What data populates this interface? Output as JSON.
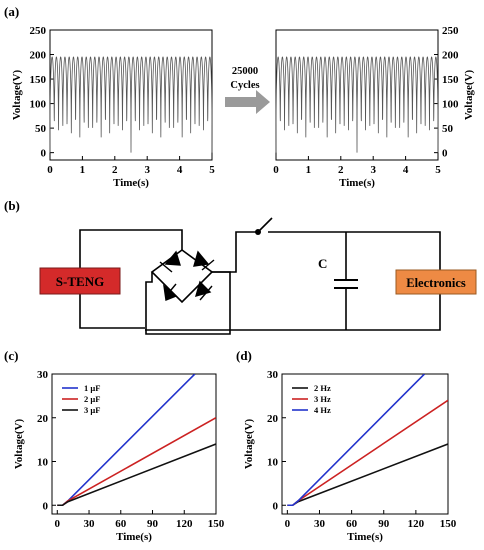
{
  "panels": {
    "a": "(a)",
    "b": "(b)",
    "c": "(c)",
    "d": "(d)"
  },
  "panel_b": {
    "source_label": "S-TENG",
    "capacitor_label": "C",
    "load_label": "Electronics",
    "source_color": "#e02020",
    "load_color": "#f08a3c"
  },
  "arrow_text": [
    "25000",
    "Cycles"
  ],
  "chart_data": [
    {
      "id": "a-left",
      "type": "line",
      "xlabel": "Time(s)",
      "ylabel": "Voltage(V)",
      "xlim": [
        0,
        5
      ],
      "ylim": [
        -15,
        250
      ],
      "xticks": [
        0,
        1,
        2,
        3,
        4,
        5
      ],
      "yticks": [
        0,
        50,
        100,
        150,
        200,
        250
      ],
      "ytick_side": "left",
      "signal": {
        "cycles": 38,
        "min": 0,
        "max": 195,
        "color": "#555555"
      }
    },
    {
      "id": "a-right",
      "type": "line",
      "xlabel": "Time(s)",
      "ylabel": "Voltage(V)",
      "xlim": [
        0,
        5
      ],
      "ylim": [
        -15,
        250
      ],
      "xticks": [
        0,
        1,
        2,
        3,
        4,
        5
      ],
      "yticks": [
        0,
        50,
        100,
        150,
        200,
        250
      ],
      "ytick_side": "right",
      "signal": {
        "cycles": 38,
        "min": 0,
        "max": 195,
        "color": "#555555"
      }
    },
    {
      "id": "c",
      "type": "line",
      "xlabel": "Time(s)",
      "ylabel": "Voltage(V)",
      "xlim": [
        -5,
        150
      ],
      "ylim": [
        -2,
        30
      ],
      "xticks": [
        0,
        30,
        60,
        90,
        120,
        150
      ],
      "yticks": [
        0,
        10,
        20,
        30
      ],
      "legend": "top-left",
      "series": [
        {
          "name": "1 μF",
          "color": "#2233cc",
          "x": [
            0,
            5,
            10,
            130
          ],
          "y": [
            0,
            0,
            1,
            30
          ]
        },
        {
          "name": "2 μF",
          "color": "#cc2222",
          "x": [
            0,
            5,
            10,
            150
          ],
          "y": [
            0,
            0,
            1,
            20
          ]
        },
        {
          "name": "3 μF",
          "color": "#111111",
          "x": [
            0,
            5,
            10,
            150
          ],
          "y": [
            0,
            0,
            0.8,
            14
          ]
        }
      ]
    },
    {
      "id": "d",
      "type": "line",
      "xlabel": "Time(s)",
      "ylabel": "Voltage(V)",
      "xlim": [
        -5,
        150
      ],
      "ylim": [
        -2,
        30
      ],
      "xticks": [
        0,
        30,
        60,
        90,
        120,
        150
      ],
      "yticks": [
        0,
        10,
        20,
        30
      ],
      "legend": "top-left",
      "series": [
        {
          "name": "2 Hz",
          "color": "#111111",
          "x": [
            0,
            5,
            10,
            150
          ],
          "y": [
            0,
            0,
            0.8,
            14
          ]
        },
        {
          "name": "3 Hz",
          "color": "#cc2222",
          "x": [
            0,
            5,
            10,
            150
          ],
          "y": [
            0,
            0,
            1,
            24
          ]
        },
        {
          "name": "4 Hz",
          "color": "#2233cc",
          "x": [
            0,
            5,
            10,
            128
          ],
          "y": [
            0,
            0,
            1,
            30
          ]
        }
      ]
    }
  ]
}
